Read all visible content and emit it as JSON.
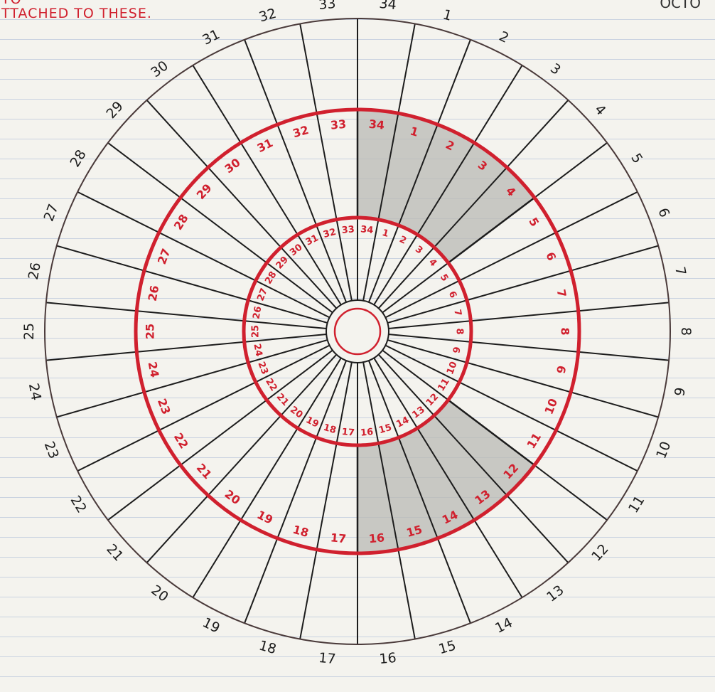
{
  "note": {
    "line_partial": "TO",
    "line2": "TTACHED TO THESE."
  },
  "corner_text": "OCTO",
  "diagram": {
    "segments": 34,
    "outer_labels": [
      "34",
      "1",
      "2",
      "3",
      "4",
      "5",
      "6",
      "7",
      "8",
      "9",
      "10",
      "11",
      "12",
      "13",
      "14",
      "15",
      "16",
      "17",
      "18",
      "19",
      "20",
      "21",
      "22",
      "23",
      "24",
      "25",
      "26",
      "27",
      "28",
      "29",
      "30",
      "31",
      "32",
      "33"
    ],
    "middle_labels": [
      "34",
      "1",
      "2",
      "3",
      "4",
      "5",
      "6",
      "7",
      "8",
      "9",
      "10",
      "11",
      "12",
      "13",
      "14",
      "15",
      "16",
      "17",
      "18",
      "19",
      "20",
      "21",
      "22",
      "23",
      "24",
      "25",
      "26",
      "27",
      "28",
      "29",
      "30",
      "31",
      "32",
      "33"
    ],
    "inner_labels": [
      "34",
      "1",
      "2",
      "3",
      "4",
      "5",
      "6",
      "7",
      "8",
      "9",
      "10",
      "11",
      "12",
      "13",
      "14",
      "15",
      "16",
      "17",
      "18",
      "19",
      "20",
      "21",
      "22",
      "23",
      "24",
      "25",
      "26",
      "27",
      "28",
      "29",
      "30",
      "31",
      "32",
      "33"
    ],
    "shaded_regions": [
      {
        "from_segment": 34,
        "to_segment": 4
      },
      {
        "from_segment": 12,
        "to_segment": 16
      }
    ],
    "colors": {
      "ink": "#1c1c1c",
      "red": "#d0202e",
      "shade": "#b9b9b4"
    }
  }
}
